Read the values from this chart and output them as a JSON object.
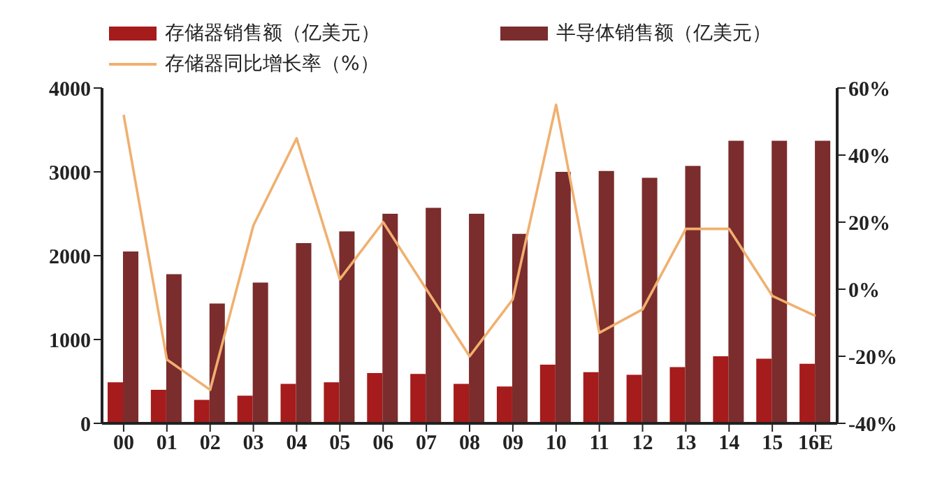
{
  "chart_data": {
    "type": "bar",
    "categories": [
      "00",
      "01",
      "02",
      "03",
      "04",
      "05",
      "06",
      "07",
      "08",
      "09",
      "10",
      "11",
      "12",
      "13",
      "14",
      "15",
      "16E"
    ],
    "series": [
      {
        "name": "存储器销售额（亿美元）",
        "color": "#a61b1b",
        "values": [
          490,
          400,
          280,
          330,
          470,
          490,
          600,
          590,
          470,
          440,
          700,
          610,
          580,
          670,
          800,
          770,
          710
        ]
      },
      {
        "name": "半导体销售额（亿美元）",
        "color": "#7b2c2c",
        "values": [
          2050,
          1780,
          1430,
          1680,
          2150,
          2290,
          2500,
          2570,
          2500,
          2260,
          3000,
          3010,
          2930,
          3070,
          3370,
          3370,
          3370
        ]
      },
      {
        "name": "存储器同比增长率（%）",
        "type": "line",
        "axis": "y2",
        "color": "#f0b070",
        "values": [
          52,
          -21,
          -30,
          19,
          45,
          3,
          20,
          0,
          -20,
          -3,
          55,
          -13,
          -6,
          18,
          18,
          -2,
          -8
        ]
      }
    ],
    "ylim": [
      0,
      4000
    ],
    "yticks": [
      0,
      1000,
      2000,
      3000,
      4000
    ],
    "y2lim": [
      -40,
      60
    ],
    "y2ticks": [
      {
        "value": -40,
        "label": "-40%"
      },
      {
        "value": -20,
        "label": "-20%"
      },
      {
        "value": 0,
        "label": "0%"
      },
      {
        "value": 20,
        "label": "20%"
      },
      {
        "value": 40,
        "label": "40%"
      },
      {
        "value": 60,
        "label": "60%"
      }
    ],
    "grid": false,
    "legend": "top",
    "marker": "none"
  }
}
